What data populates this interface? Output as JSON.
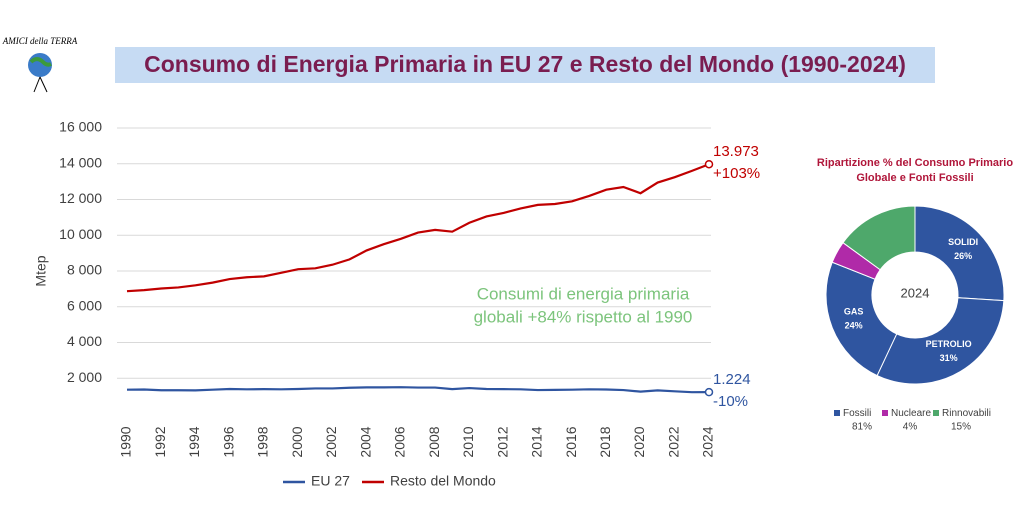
{
  "logo": "AMICI della TERRA",
  "title": "Consumo di Energia Primaria in EU 27 e Resto del Mondo (1990-2024)",
  "chart_data": [
    {
      "type": "line",
      "y_label": "Mtep",
      "x": [
        1990,
        1991,
        1992,
        1993,
        1994,
        1995,
        1996,
        1997,
        1998,
        1999,
        2000,
        2001,
        2002,
        2003,
        2004,
        2005,
        2006,
        2007,
        2008,
        2009,
        2010,
        2011,
        2012,
        2013,
        2014,
        2015,
        2016,
        2017,
        2018,
        2019,
        2020,
        2021,
        2022,
        2023,
        2024
      ],
      "xlim": [
        1990,
        2024
      ],
      "xticks": [
        1990,
        1992,
        1994,
        1996,
        1998,
        2000,
        2002,
        2004,
        2006,
        2008,
        2010,
        2012,
        2014,
        2016,
        2018,
        2020,
        2022,
        2024
      ],
      "ylim": [
        0,
        16000
      ],
      "yticks": [
        {
          "value": 2000,
          "label": "2 000"
        },
        {
          "value": 4000,
          "label": "4 000"
        },
        {
          "value": 6000,
          "label": "6 000"
        },
        {
          "value": 8000,
          "label": "8 000"
        },
        {
          "value": 10000,
          "label": "10 000"
        },
        {
          "value": 12000,
          "label": "12 000"
        },
        {
          "value": 14000,
          "label": "14 000"
        },
        {
          "value": 16000,
          "label": "16 000"
        }
      ],
      "grid": true,
      "series": [
        {
          "name": "EU 27",
          "color": "#2f55a0",
          "end_label": "1.224",
          "change": "-10%",
          "values": [
            1360,
            1370,
            1330,
            1330,
            1320,
            1360,
            1400,
            1380,
            1390,
            1380,
            1400,
            1430,
            1430,
            1470,
            1490,
            1490,
            1500,
            1480,
            1480,
            1390,
            1450,
            1400,
            1390,
            1380,
            1340,
            1350,
            1360,
            1380,
            1370,
            1340,
            1250,
            1320,
            1270,
            1220,
            1224
          ]
        },
        {
          "name": "Resto del Mondo",
          "color": "#c00000",
          "end_label": "13.973",
          "change": "+103%",
          "values": [
            6870,
            6930,
            7020,
            7080,
            7200,
            7350,
            7550,
            7650,
            7700,
            7900,
            8100,
            8150,
            8350,
            8650,
            9150,
            9500,
            9800,
            10150,
            10300,
            10200,
            10700,
            11050,
            11250,
            11500,
            11700,
            11750,
            11900,
            12200,
            12550,
            12700,
            12350,
            12950,
            13250,
            13600,
            13973
          ]
        }
      ],
      "annotations": [
        "Consumi di energia primaria",
        "globali +84% rispetto al 1990"
      ],
      "annotation_color": "#7cc47c"
    },
    {
      "type": "pie",
      "title": "Ripartizione % del Consumo Primario Globale e Fonti Fossili",
      "center_label": "2024",
      "categories": [
        "SOLIDI",
        "PETROLIO",
        "GAS",
        null,
        null
      ],
      "values": [
        26,
        31,
        24,
        4,
        15
      ],
      "value_labels": [
        "26%",
        "31%",
        "24%",
        null,
        null
      ],
      "colors": [
        "#2f55a0",
        "#2f55a0",
        "#2f55a0",
        "#b02aa8",
        "#4ea86b"
      ],
      "legend": [
        {
          "name": "Fossili",
          "color": "#2f55a0",
          "value": 81,
          "value_label": "81%"
        },
        {
          "name": "Nucleare",
          "color": "#b02aa8",
          "value": 4,
          "value_label": "4%"
        },
        {
          "name": "Rinnovabili",
          "color": "#4ea86b",
          "value": 15,
          "value_label": "15%"
        }
      ]
    }
  ]
}
